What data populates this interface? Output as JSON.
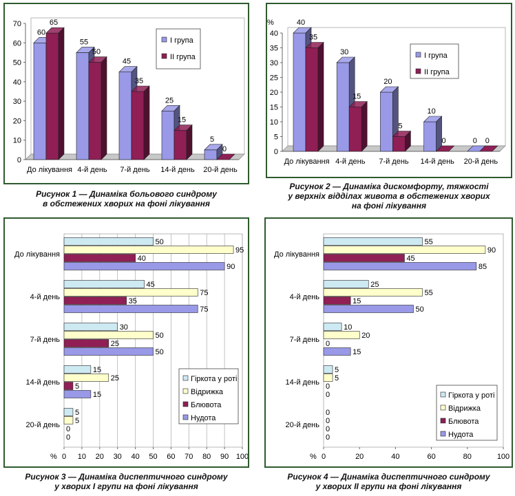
{
  "colors": {
    "group1": "#9999e8",
    "group2": "#8f1f55",
    "bitterness": "#cde9f2",
    "belching": "#ffffcc",
    "vomiting": "#8f1f55",
    "nausea": "#9999e8"
  },
  "captions": [
    {
      "line1": "Рисунок 1 — Динаміка больового синдрому",
      "line2": "в обстежених хворих на фоні лікування",
      "line3": ""
    },
    {
      "line1": "Рисунок 2 — Динаміка дискомфорту, тяжкості",
      "line2": "у верхніх відділах живота в обстежених хворих",
      "line3": "на фоні лікування"
    },
    {
      "line1": "Рисунок 3 — Динаміка диспептичного синдрому",
      "line2": "у хворих І групи на фоні лікування",
      "line3": ""
    },
    {
      "line1": "Рисунок 4 — Динаміка диспептичного синдрому",
      "line2": "у хворих ІІ групи на фоні лікування",
      "line3": ""
    }
  ],
  "chart_data": [
    {
      "type": "bar",
      "ylabel": "",
      "ylim": [
        0,
        70
      ],
      "yticks": [
        0,
        10,
        20,
        30,
        40,
        50,
        60,
        70
      ],
      "categories": [
        "До лікування",
        "4-й день",
        "7-й день",
        "14-й день",
        "20-й день"
      ],
      "series": [
        {
          "name": "I група",
          "color": "#9999e8",
          "values": [
            60,
            55,
            45,
            25,
            5
          ]
        },
        {
          "name": "II група",
          "color": "#8f1f55",
          "values": [
            65,
            50,
            35,
            15,
            0
          ]
        }
      ],
      "legend": "right",
      "grid": false,
      "style": "3d"
    },
    {
      "type": "bar",
      "ylabel": "%",
      "ylim": [
        0,
        40
      ],
      "yticks": [
        0,
        5,
        10,
        15,
        20,
        25,
        30,
        35,
        40
      ],
      "categories": [
        "До лікування",
        "4-й день",
        "7-й день",
        "14-й день",
        "20-й день"
      ],
      "series": [
        {
          "name": "I група",
          "color": "#9999e8",
          "values": [
            40,
            30,
            20,
            10,
            0
          ]
        },
        {
          "name": "II група",
          "color": "#8f1f55",
          "values": [
            35,
            15,
            5,
            0,
            0
          ]
        }
      ],
      "legend": "right",
      "grid": false,
      "style": "3d"
    },
    {
      "type": "bar",
      "orientation": "horizontal",
      "xlabel": "%",
      "xlim": [
        0,
        100
      ],
      "xticks": [
        0,
        10,
        20,
        30,
        40,
        50,
        60,
        70,
        80,
        90,
        100
      ],
      "categories": [
        "До лікування",
        "4-й день",
        "7-й день",
        "14-й день",
        "20-й день"
      ],
      "series": [
        {
          "name": "Гіркота у роті",
          "color": "#cde9f2",
          "values": [
            50,
            45,
            30,
            15,
            5
          ]
        },
        {
          "name": "Відрижка",
          "color": "#ffffcc",
          "values": [
            95,
            75,
            50,
            25,
            5
          ]
        },
        {
          "name": "Блювота",
          "color": "#8f1f55",
          "values": [
            40,
            35,
            25,
            5,
            0
          ]
        },
        {
          "name": "Нудота",
          "color": "#9999e8",
          "values": [
            90,
            75,
            50,
            15,
            0
          ]
        }
      ],
      "legend": "bottom-right",
      "grid": true
    },
    {
      "type": "bar",
      "orientation": "horizontal",
      "xlabel": "%",
      "xlim": [
        0,
        100
      ],
      "xticks": [
        0,
        20,
        40,
        60,
        80,
        100
      ],
      "categories": [
        "До лікування",
        "4-й день",
        "7-й день",
        "14-й день",
        "20-й день"
      ],
      "series": [
        {
          "name": "Гіркота у роті",
          "color": "#cde9f2",
          "values": [
            55,
            25,
            10,
            5,
            0
          ]
        },
        {
          "name": "Відрижка",
          "color": "#ffffcc",
          "values": [
            90,
            55,
            20,
            5,
            0
          ]
        },
        {
          "name": "Блювота",
          "color": "#8f1f55",
          "values": [
            45,
            15,
            0,
            0,
            0
          ]
        },
        {
          "name": "Нудота",
          "color": "#9999e8",
          "values": [
            85,
            50,
            15,
            0,
            0
          ]
        }
      ],
      "legend": "bottom-right",
      "grid": false
    }
  ]
}
